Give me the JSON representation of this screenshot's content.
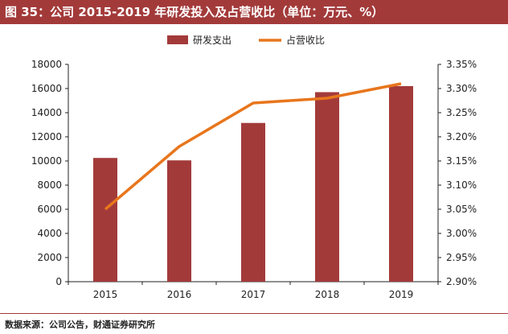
{
  "title": "图 35：公司 2015-2019 年研发投入及占营收比（单位：万元、%）",
  "source": "数据来源：公司公告，财通证券研究所",
  "colors": {
    "bar": "#a33a3a",
    "line": "#e8761c",
    "title_bg": "#a33a3a"
  },
  "chart_data": {
    "type": "bar",
    "title": "图 35：公司 2015-2019 年研发投入及占营收比（单位：万元、%）",
    "categories": [
      "2015",
      "2016",
      "2017",
      "2018",
      "2019"
    ],
    "series": [
      {
        "name": "研发支出",
        "type": "bar",
        "axis": "left",
        "values": [
          10250,
          10050,
          13150,
          15700,
          16200
        ]
      },
      {
        "name": "占营收比",
        "type": "line",
        "axis": "right",
        "values": [
          3.05,
          3.18,
          3.27,
          3.28,
          3.31
        ]
      }
    ],
    "ylim_left": [
      0,
      18000
    ],
    "yticks_left": [
      "0",
      "2000",
      "4000",
      "6000",
      "8000",
      "10000",
      "12000",
      "14000",
      "16000",
      "18000"
    ],
    "ylim_right": [
      2.9,
      3.35
    ],
    "yticks_right": [
      "2.90%",
      "2.95%",
      "3.00%",
      "3.05%",
      "3.10%",
      "3.15%",
      "3.20%",
      "3.25%",
      "3.30%",
      "3.35%"
    ],
    "legend_position": "top",
    "grid": false
  }
}
